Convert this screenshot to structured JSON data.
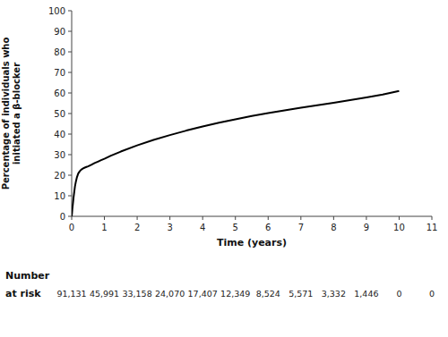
{
  "chart_data": {
    "type": "line",
    "xlabel": "Time (years)",
    "ylabel": "Percentage of individuals who\ninitiated a β-blocker",
    "x": [
      0.0,
      0.01,
      0.02,
      0.04,
      0.06,
      0.08,
      0.1,
      0.13,
      0.16,
      0.2,
      0.25,
      0.3,
      0.35,
      0.4,
      0.45,
      0.5,
      0.6,
      0.7,
      0.8,
      0.9,
      1.0,
      1.2,
      1.5,
      2.0,
      2.5,
      3.0,
      3.5,
      4.0,
      4.5,
      5.0,
      5.5,
      6.0,
      6.5,
      7.0,
      7.5,
      8.0,
      8.5,
      9.0,
      9.5,
      10.0
    ],
    "series": [
      {
        "color": "#000000",
        "values": [
          0.0,
          1.5,
          3.5,
          6.5,
          9.5,
          12.0,
          14.5,
          17.0,
          19.0,
          20.8,
          22.0,
          22.8,
          23.3,
          23.7,
          24.0,
          24.3,
          25.1,
          25.9,
          26.6,
          27.3,
          28.0,
          29.5,
          31.5,
          34.5,
          37.2,
          39.5,
          41.7,
          43.7,
          45.5,
          47.2,
          48.8,
          50.2,
          51.5,
          52.8,
          54.0,
          55.2,
          56.5,
          57.8,
          59.2,
          61.0
        ]
      }
    ],
    "xlim": [
      0,
      11
    ],
    "ylim": [
      0,
      100
    ],
    "xticks": [
      0,
      1,
      2,
      3,
      4,
      5,
      6,
      7,
      8,
      9,
      10,
      11
    ],
    "yticks": [
      0,
      10,
      20,
      30,
      40,
      50,
      60,
      70,
      80,
      90,
      100
    ],
    "grid": false,
    "at_risk": {
      "title": [
        "Number",
        "at risk"
      ],
      "x": [
        0,
        1,
        2,
        3,
        4,
        5,
        6,
        7,
        8,
        9,
        10,
        11
      ],
      "value_labels": [
        "91,131",
        "45,991",
        "33,158",
        "24,070",
        "17,407",
        "12,349",
        "8,524",
        "5,571",
        "3,332",
        "1,446",
        "0",
        "0"
      ]
    }
  }
}
